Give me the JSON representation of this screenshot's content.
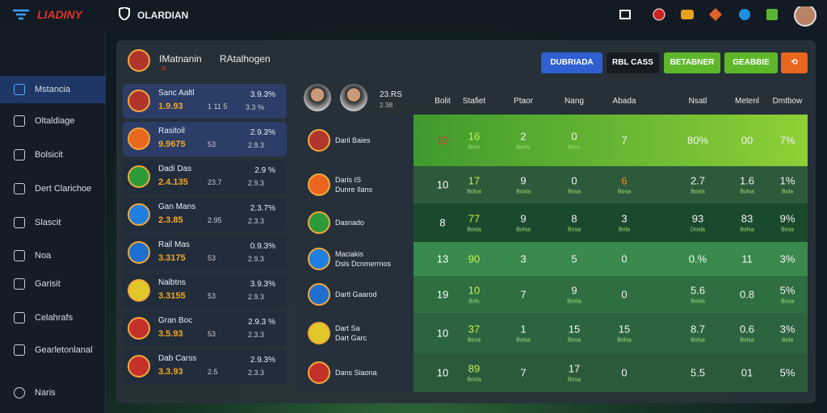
{
  "top_bar": {
    "logo": "LIADINY",
    "app_name": "OLARDIAN"
  },
  "sidebar": {
    "items": [
      "Mstancia",
      "Oltaldiage",
      "Bolsicit",
      "Dert Clarichoe",
      "Slascit",
      "Noa",
      "Garisit",
      "Celahrafs",
      "Gearletonlanal"
    ],
    "footer": "Naris"
  },
  "panel": {
    "title": "IMatnanin",
    "title_2": "RAtalhogen",
    "subtitle": "R"
  },
  "buttons": [
    "DUBRIADA",
    "RBL CASS",
    "BETABNER",
    "GEABBIE"
  ],
  "teams": [
    {
      "name": "Sanc Aaltl",
      "odds": "1.9.93",
      "count": "1 11 5",
      "pct": "3.9.3%",
      "sub": "3.3 %"
    },
    {
      "name": "Rasitoil",
      "odds": "9.9675",
      "count": "53",
      "pct": "2.9.3%",
      "sub": "2.9.3"
    },
    {
      "name": "Dadi Das",
      "odds": "2.4.135",
      "count": "23.7",
      "pct": "2.9 %",
      "sub": "2.9.3"
    },
    {
      "name": "Gan Mans",
      "odds": "2.3.85",
      "count": "2.95",
      "pct": "2.3.7%",
      "sub": "2.3.3"
    },
    {
      "name": "Rail Mas",
      "odds": "3.3175",
      "count": "53",
      "pct": "0.9.3%",
      "sub": "2.9.3"
    },
    {
      "name": "Nalbtns",
      "odds": "3.3155",
      "count": "53",
      "pct": "3.9.3%",
      "sub": "2.9.3"
    },
    {
      "name": "Gran Boc",
      "odds": "3.5.93",
      "count": "53",
      "pct": "2.9.3 %",
      "sub": "2.3.3"
    },
    {
      "name": "Dab Carss",
      "odds": "3.3.93",
      "count": "2.5",
      "pct": "2.9.3%",
      "sub": "2.3.3"
    }
  ],
  "table": {
    "player_stat": "23.RS",
    "player_sub": "2.3B",
    "columns": [
      "Bolit",
      "Stafiet",
      "Ptaor",
      "Nang",
      "Abada",
      "Nsatl",
      "Metenl",
      "Dmtbow"
    ],
    "rows": [
      {
        "team": "Daril Baies",
        "cells": [
          {
            "v": "10"
          },
          {
            "v": "16",
            "s": "Bors"
          },
          {
            "v": "2",
            "s": "Boels"
          },
          {
            "v": "0",
            "s": "Bors"
          },
          {
            "v": "7"
          },
          {
            "v": "80%"
          },
          {
            "v": "00"
          },
          {
            "v": "7%"
          }
        ]
      },
      {
        "team": "Daris IS",
        "team_sub": "Dunre Ilans",
        "cells": [
          {
            "v": "10"
          },
          {
            "v": "17",
            "s": "Bolsa"
          },
          {
            "v": "9",
            "s": "Bosla"
          },
          {
            "v": "0",
            "s": "Bosa"
          },
          {
            "v": "6",
            "s": "Bosa"
          },
          {
            "v": "2.7",
            "s": "Bosla"
          },
          {
            "v": "1.6",
            "s": "Bolsa"
          },
          {
            "v": "1%",
            "s": "Bola"
          }
        ]
      },
      {
        "team": "Dasnado",
        "cells": [
          {
            "v": "8"
          },
          {
            "v": "77",
            "s": "Bosla"
          },
          {
            "v": "9",
            "s": "Bolsa"
          },
          {
            "v": "8",
            "s": "Bosa"
          },
          {
            "v": "3",
            "s": "Bola"
          },
          {
            "v": "93",
            "s": "Dosla"
          },
          {
            "v": "83",
            "s": "Bolsa"
          },
          {
            "v": "9%",
            "s": "Bosa"
          }
        ]
      },
      {
        "team": "Maciakis",
        "team_sub": "Dsls Dcnmerrnos",
        "cells": [
          {
            "v": "13"
          },
          {
            "v": "90"
          },
          {
            "v": "3"
          },
          {
            "v": "5"
          },
          {
            "v": "0"
          },
          {
            "v": "0.%"
          },
          {
            "v": "11"
          },
          {
            "v": "3%"
          }
        ]
      },
      {
        "team": "Dartl Gaarod",
        "cells": [
          {
            "v": "19"
          },
          {
            "v": "10",
            "s": "Bols"
          },
          {
            "v": "7"
          },
          {
            "v": "9",
            "s": "Bosla"
          },
          {
            "v": "0"
          },
          {
            "v": "5.6",
            "s": "Bosla"
          },
          {
            "v": "0.8"
          },
          {
            "v": "5%",
            "s": "Bosa"
          }
        ]
      },
      {
        "team": "Dart Sa",
        "team_sub": "Dart Garc",
        "cells": [
          {
            "v": "10"
          },
          {
            "v": "37",
            "s": "Bosa"
          },
          {
            "v": "1",
            "s": "Bolsa"
          },
          {
            "v": "15",
            "s": "Bosa"
          },
          {
            "v": "15",
            "s": "Bolsa"
          },
          {
            "v": "8.7",
            "s": "Bolsa"
          },
          {
            "v": "0.6",
            "s": "Bolsa"
          },
          {
            "v": "3%",
            "s": "Bola"
          }
        ]
      },
      {
        "team": "Dans Siaona",
        "cells": [
          {
            "v": "10"
          },
          {
            "v": "89",
            "s": "Bosla"
          },
          {
            "v": "7"
          },
          {
            "v": "17",
            "s": "Bosa"
          },
          {
            "v": "0"
          },
          {
            "v": "5.5"
          },
          {
            "v": "01"
          },
          {
            "v": "5%"
          }
        ]
      }
    ]
  }
}
